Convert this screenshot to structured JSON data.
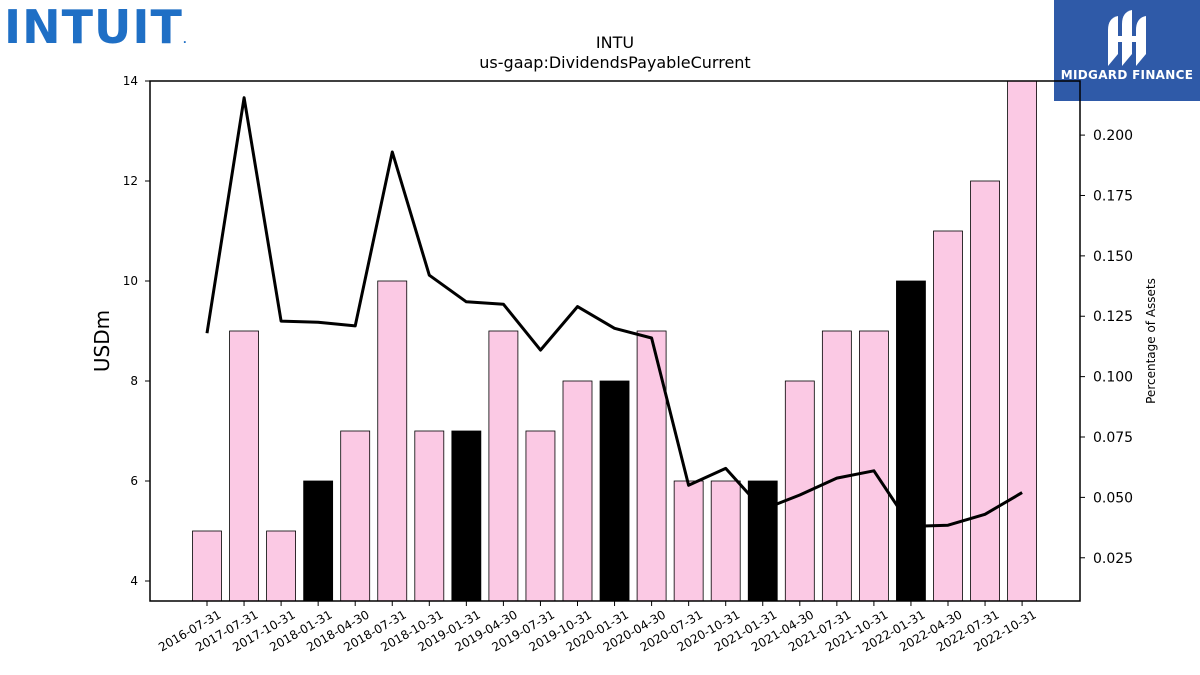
{
  "logos": {
    "intuit": "INTUIT",
    "midgard": "MIDGARD FINANCE"
  },
  "colors": {
    "bar_pink": "#fbc9e4",
    "bar_black": "#000000",
    "line": "#000000",
    "intuit_blue": "#1f6fc5",
    "midgard_bg": "#2f5aa8"
  },
  "chart_data": {
    "type": "bar",
    "title": "INTU",
    "subtitle": "us-gaap:DividendsPayableCurrent",
    "ylabel": "USDm",
    "y2label": "Percentage of Assets",
    "ylim": [
      3.6,
      14
    ],
    "yticks": [
      4,
      6,
      8,
      10,
      12,
      14
    ],
    "y2lim": [
      0.0071,
      0.2224
    ],
    "y2ticks": [
      "0.025",
      "0.050",
      "0.075",
      "0.100",
      "0.125",
      "0.150",
      "0.175",
      "0.200"
    ],
    "grid": false,
    "categories": [
      "2016-07-31",
      "2017-07-31",
      "2017-10-31",
      "2018-01-31",
      "2018-04-30",
      "2018-07-31",
      "2018-10-31",
      "2019-01-31",
      "2019-04-30",
      "2019-07-31",
      "2019-10-31",
      "2020-01-31",
      "2020-04-30",
      "2020-07-31",
      "2020-10-31",
      "2021-01-31",
      "2021-04-30",
      "2021-07-31",
      "2021-10-31",
      "2022-01-31",
      "2022-04-30",
      "2022-07-31",
      "2022-10-31"
    ],
    "series": [
      {
        "type": "bar",
        "values": [
          5,
          9,
          5,
          6,
          7,
          10,
          7,
          7,
          9,
          7,
          8,
          8,
          9,
          6,
          6,
          6,
          8,
          9,
          9,
          10,
          11,
          12,
          14
        ],
        "highlight": [
          false,
          false,
          false,
          true,
          false,
          false,
          false,
          true,
          false,
          false,
          false,
          true,
          false,
          false,
          false,
          true,
          false,
          false,
          false,
          true,
          false,
          false,
          false
        ]
      },
      {
        "type": "line",
        "axis": "right",
        "values": [
          0.118,
          0.2155,
          0.123,
          0.1225,
          0.121,
          0.193,
          0.142,
          0.131,
          0.13,
          0.111,
          0.129,
          0.12,
          0.116,
          0.055,
          0.062,
          0.045,
          0.051,
          0.058,
          0.061,
          0.038,
          0.0385,
          0.043,
          0.052
        ]
      }
    ]
  }
}
